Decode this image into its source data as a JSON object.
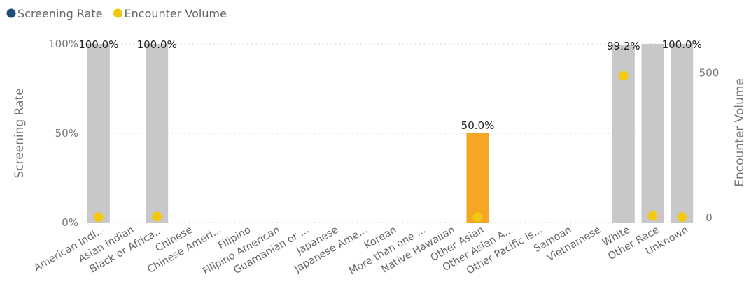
{
  "chart_data": {
    "type": "bar",
    "legend": [
      {
        "name": "Screening Rate",
        "color": "#1f4e79",
        "marker": "circle"
      },
      {
        "name": "Encounter Volume",
        "color": "#f2c811",
        "marker": "circle"
      }
    ],
    "legend_position": "top-left",
    "ylabel": "Screening Rate",
    "y2label": "Encounter Volume",
    "ylim": [
      0,
      100
    ],
    "y_ticks": [
      "0%",
      "50%",
      "100%"
    ],
    "y2lim": [
      0,
      600
    ],
    "y2_ticks": [
      "0",
      "500"
    ],
    "grid": true,
    "categories": [
      "American Indi...",
      "Asian Indian",
      "Black or Africa...",
      "Chinese",
      "Chinese Ameri...",
      "Filipino",
      "Filipino American",
      "Guamanian or ...",
      "Japanese",
      "Japanese Ame...",
      "Korean",
      "More than one ...",
      "Native Hawaiian",
      "Other Asian",
      "Other Asian A...",
      "Other Pacific Is...",
      "Samoan",
      "Vietnamese",
      "White",
      "Other Race",
      "Unknown"
    ],
    "series": [
      {
        "name": "Screening Rate",
        "type": "bar",
        "axis": "left",
        "values": [
          100.0,
          null,
          100.0,
          null,
          null,
          null,
          null,
          null,
          null,
          null,
          null,
          null,
          null,
          50.0,
          null,
          null,
          null,
          null,
          99.2,
          100.0,
          100.0
        ],
        "labels": [
          "100.0%",
          "",
          "100.0%",
          "",
          "",
          "",
          "",
          "",
          "",
          "",
          "",
          "",
          "",
          "50.0%",
          "",
          "",
          "",
          "",
          "99.2%",
          "",
          "100.0%"
        ],
        "colors": [
          "#c8c8c8",
          "",
          "#c8c8c8",
          "",
          "",
          "",
          "",
          "",
          "",
          "",
          "",
          "",
          "",
          "#f5a623",
          "",
          "",
          "",
          "",
          "#c8c8c8",
          "#c8c8c8",
          "#c8c8c8"
        ]
      },
      {
        "name": "Encounter Volume",
        "type": "scatter",
        "axis": "right",
        "values": [
          2,
          null,
          4,
          null,
          null,
          null,
          null,
          null,
          null,
          null,
          null,
          null,
          null,
          2,
          null,
          null,
          null,
          null,
          490,
          6,
          2
        ]
      }
    ]
  }
}
